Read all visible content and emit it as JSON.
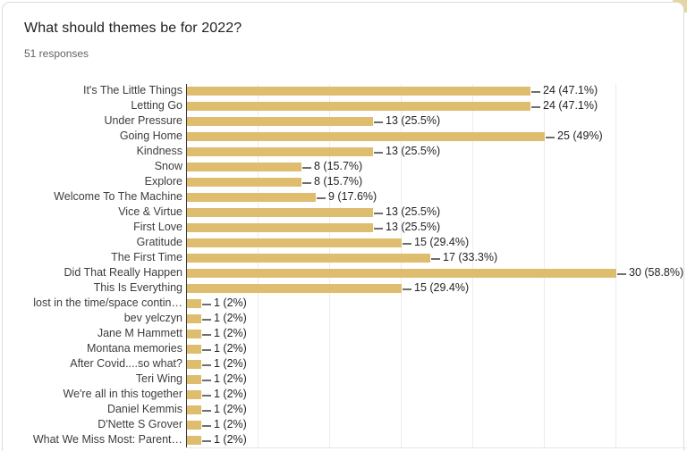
{
  "card": {
    "title": "What should themes be for 2022?",
    "subtitle": "51 responses"
  },
  "chart_data": {
    "type": "bar",
    "orientation": "horizontal",
    "title": "What should themes be for 2022?",
    "subtitle": "51 responses",
    "total_responses": 51,
    "bar_color": "#dfbd6f",
    "legend": "none",
    "axis": {
      "min": 0,
      "max": 35,
      "gridline_interval": 5,
      "gridlines_on": true,
      "tick_labels_visible": false
    },
    "rows": [
      {
        "label": "It's The Little Things",
        "value": 24,
        "annotation": "24 (47.1%)"
      },
      {
        "label": "Letting Go",
        "value": 24,
        "annotation": "24 (47.1%)"
      },
      {
        "label": "Under Pressure",
        "value": 13,
        "annotation": "13 (25.5%)"
      },
      {
        "label": "Going Home",
        "value": 25,
        "annotation": "25 (49%)"
      },
      {
        "label": "Kindness",
        "value": 13,
        "annotation": "13 (25.5%)"
      },
      {
        "label": "Snow",
        "value": 8,
        "annotation": "8 (15.7%)"
      },
      {
        "label": "Explore",
        "value": 8,
        "annotation": "8 (15.7%)"
      },
      {
        "label": "Welcome To The Machine",
        "value": 9,
        "annotation": "9 (17.6%)"
      },
      {
        "label": "Vice & Virtue",
        "value": 13,
        "annotation": "13 (25.5%)"
      },
      {
        "label": "First Love",
        "value": 13,
        "annotation": "13 (25.5%)"
      },
      {
        "label": "Gratitude",
        "value": 15,
        "annotation": "15 (29.4%)"
      },
      {
        "label": "The First Time",
        "value": 17,
        "annotation": "17 (33.3%)"
      },
      {
        "label": "Did That Really Happen",
        "value": 30,
        "annotation": "30 (58.8%)"
      },
      {
        "label": "This Is Everything",
        "value": 15,
        "annotation": "15 (29.4%)"
      },
      {
        "label": "lost in the time/space contin…",
        "value": 1,
        "annotation": "1 (2%)"
      },
      {
        "label": "bev yelczyn",
        "value": 1,
        "annotation": "1 (2%)"
      },
      {
        "label": "Jane M Hammett",
        "value": 1,
        "annotation": "1 (2%)"
      },
      {
        "label": "Montana memories",
        "value": 1,
        "annotation": "1 (2%)"
      },
      {
        "label": "After Covid....so what?",
        "value": 1,
        "annotation": "1 (2%)"
      },
      {
        "label": "Teri Wing",
        "value": 1,
        "annotation": "1 (2%)"
      },
      {
        "label": "We're all in this together",
        "value": 1,
        "annotation": "1 (2%)"
      },
      {
        "label": "Daniel Kemmis",
        "value": 1,
        "annotation": "1 (2%)"
      },
      {
        "label": "D'Nette S Grover",
        "value": 1,
        "annotation": "1 (2%)"
      },
      {
        "label": "What We Miss Most: Parent…",
        "value": 1,
        "annotation": "1 (2%)"
      }
    ]
  }
}
